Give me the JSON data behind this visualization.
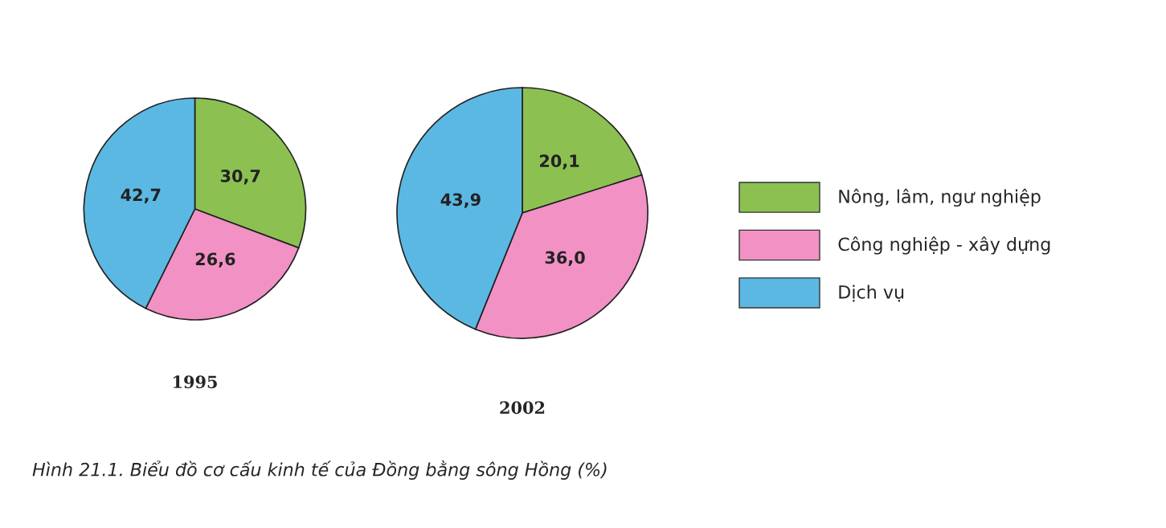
{
  "chart_data": [
    {
      "type": "pie",
      "title": "1995",
      "categories": [
        "Nông, lâm, ngư nghiệp",
        "Công nghiệp - xây dựng",
        "Dịch vụ"
      ],
      "values": [
        30.7,
        26.6,
        42.7
      ],
      "value_labels": [
        "30,7",
        "26,6",
        "42,7"
      ],
      "colors": [
        "#8cc152",
        "#f291c4",
        "#5bb8e3"
      ],
      "legend": "right",
      "annotations": [
        "Hình 21.1. Biểu đồ cơ cấu kinh tế của Đồng bằng sông Hồng (%)"
      ]
    },
    {
      "type": "pie",
      "title": "2002",
      "categories": [
        null,
        null,
        null
      ],
      "values": [
        20.1,
        36.0,
        43.9
      ],
      "value_labels": [
        "20,1",
        "36,0",
        "43,9"
      ],
      "colors": [
        "#8cc152",
        "#f291c4",
        "#5bb8e3"
      ]
    }
  ]
}
